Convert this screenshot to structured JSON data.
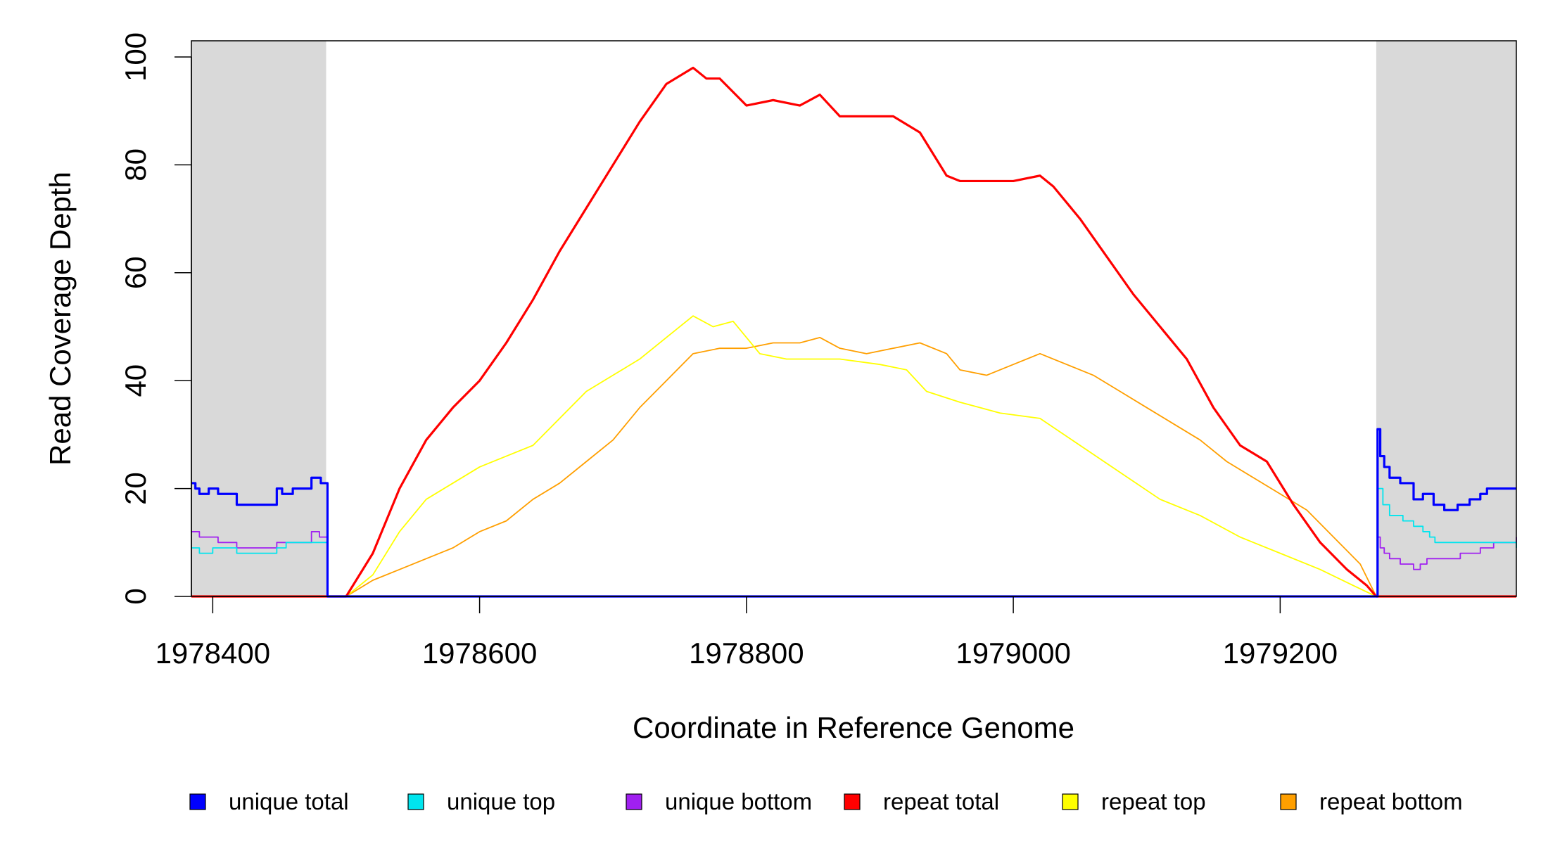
{
  "chart_data": {
    "type": "line",
    "title": "",
    "xlabel": "Coordinate in Reference Genome",
    "ylabel": "Read Coverage Depth",
    "xlim": [
      1978384,
      1979377
    ],
    "ylim": [
      0,
      103
    ],
    "x_ticks": [
      1978400,
      1978600,
      1978800,
      1979000,
      1979200
    ],
    "x_tick_labels": [
      "1978400",
      "1978600",
      "1978800",
      "1979000",
      "1979200"
    ],
    "y_ticks": [
      0,
      20,
      40,
      60,
      80,
      100
    ],
    "y_tick_labels": [
      "0",
      "20",
      "40",
      "60",
      "80",
      "100"
    ],
    "grid": false,
    "legend_position": "bottom",
    "shaded_regions": [
      [
        1978384,
        1978485
      ],
      [
        1979272,
        1979377
      ]
    ],
    "series": [
      {
        "name": "unique total",
        "color": "#0000ff",
        "step": true,
        "x": [
          1978384,
          1978387,
          1978390,
          1978397,
          1978404,
          1978418,
          1978448,
          1978452,
          1978460,
          1978474,
          1978481,
          1978485,
          1978486,
          1979272,
          1979273,
          1979275,
          1979278,
          1979282,
          1979290,
          1979300,
          1979307,
          1979315,
          1979323,
          1979333,
          1979342,
          1979350,
          1979355,
          1979360,
          1979377
        ],
        "y": [
          21,
          20,
          19,
          20,
          19,
          17,
          20,
          19,
          20,
          22,
          21,
          21,
          0,
          0,
          31,
          26,
          24,
          22,
          21,
          18,
          19,
          17,
          16,
          17,
          18,
          19,
          20,
          20,
          20
        ]
      },
      {
        "name": "unique top",
        "color": "#00e5ee",
        "step": true,
        "x": [
          1978384,
          1978390,
          1978400,
          1978418,
          1978448,
          1978455,
          1978474,
          1978485,
          1978486,
          1979272,
          1979273,
          1979277,
          1979282,
          1979292,
          1979300,
          1979307,
          1979312,
          1979316,
          1979333,
          1979355,
          1979377
        ],
        "y": [
          9,
          8,
          9,
          8,
          9,
          10,
          10,
          10,
          0,
          0,
          20,
          17,
          15,
          14,
          13,
          12,
          11,
          10,
          10,
          10,
          9
        ]
      },
      {
        "name": "unique bottom",
        "color": "#a020f0",
        "step": true,
        "x": [
          1978384,
          1978390,
          1978404,
          1978418,
          1978448,
          1978474,
          1978480,
          1978485,
          1978486,
          1979272,
          1979273,
          1979275,
          1979278,
          1979282,
          1979290,
          1979300,
          1979305,
          1979310,
          1979320,
          1979335,
          1979350,
          1979360,
          1979377
        ],
        "y": [
          12,
          11,
          10,
          9,
          10,
          12,
          11,
          11,
          0,
          0,
          11,
          9,
          8,
          7,
          6,
          5,
          6,
          7,
          7,
          8,
          9,
          10,
          11
        ]
      },
      {
        "name": "repeat total",
        "color": "#ff0000",
        "step": false,
        "x": [
          1978384,
          1978485,
          1978500,
          1978520,
          1978540,
          1978560,
          1978580,
          1978600,
          1978620,
          1978640,
          1978660,
          1978680,
          1978700,
          1978720,
          1978740,
          1978760,
          1978770,
          1978780,
          1978800,
          1978820,
          1978840,
          1978855,
          1978870,
          1978890,
          1978910,
          1978930,
          1978950,
          1978960,
          1978980,
          1979000,
          1979020,
          1979030,
          1979050,
          1979070,
          1979090,
          1979110,
          1979130,
          1979150,
          1979170,
          1979190,
          1979210,
          1979230,
          1979250,
          1979265,
          1979272,
          1979377
        ],
        "y": [
          0,
          0,
          0,
          8,
          20,
          29,
          35,
          40,
          47,
          55,
          64,
          72,
          80,
          88,
          95,
          98,
          96,
          96,
          91,
          92,
          91,
          93,
          89,
          89,
          89,
          86,
          78,
          77,
          77,
          77,
          78,
          76,
          70,
          63,
          56,
          50,
          44,
          35,
          28,
          25,
          17,
          10,
          5,
          2,
          0,
          0
        ]
      },
      {
        "name": "repeat top",
        "color": "#ffff00",
        "step": false,
        "x": [
          1978384,
          1978485,
          1978500,
          1978520,
          1978540,
          1978560,
          1978580,
          1978600,
          1978620,
          1978640,
          1978660,
          1978680,
          1978700,
          1978720,
          1978740,
          1978760,
          1978775,
          1978790,
          1978810,
          1978830,
          1978850,
          1978870,
          1978900,
          1978920,
          1978935,
          1978960,
          1978990,
          1979020,
          1979050,
          1979080,
          1979110,
          1979140,
          1979170,
          1979200,
          1979230,
          1979255,
          1979272,
          1979377
        ],
        "y": [
          0,
          0,
          0,
          4,
          12,
          18,
          21,
          24,
          26,
          28,
          33,
          38,
          41,
          44,
          48,
          52,
          50,
          51,
          45,
          44,
          44,
          44,
          43,
          42,
          38,
          36,
          34,
          33,
          28,
          23,
          18,
          15,
          11,
          8,
          5,
          2,
          0,
          0
        ]
      },
      {
        "name": "repeat bottom",
        "color": "#ff9f00",
        "step": false,
        "x": [
          1978384,
          1978485,
          1978500,
          1978520,
          1978540,
          1978560,
          1978580,
          1978600,
          1978620,
          1978640,
          1978660,
          1978680,
          1978700,
          1978720,
          1978740,
          1978760,
          1978780,
          1978800,
          1978820,
          1978840,
          1978855,
          1978870,
          1978890,
          1978910,
          1978930,
          1978950,
          1978960,
          1978980,
          1979000,
          1979020,
          1979040,
          1979060,
          1979080,
          1979100,
          1979120,
          1979140,
          1979160,
          1979180,
          1979200,
          1979220,
          1979240,
          1979260,
          1979272,
          1979377
        ],
        "y": [
          0,
          0,
          0,
          3,
          5,
          7,
          9,
          12,
          14,
          18,
          21,
          25,
          29,
          35,
          40,
          45,
          46,
          46,
          47,
          47,
          48,
          46,
          45,
          46,
          47,
          45,
          42,
          41,
          43,
          45,
          43,
          41,
          38,
          35,
          32,
          29,
          25,
          22,
          19,
          16,
          11,
          6,
          0,
          0
        ]
      }
    ]
  }
}
